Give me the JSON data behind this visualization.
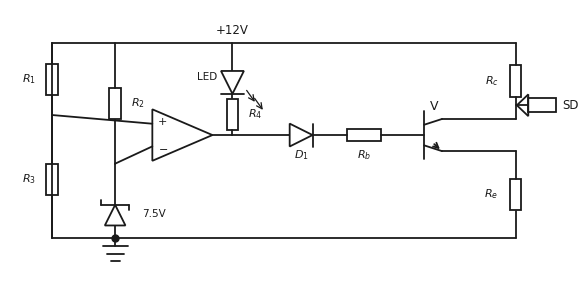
{
  "bg": "#ffffff",
  "lc": "#1a1a1a",
  "figsize": [
    5.82,
    2.93
  ],
  "dpi": 100,
  "xlim": [
    0,
    10
  ],
  "ylim": [
    0,
    5
  ]
}
